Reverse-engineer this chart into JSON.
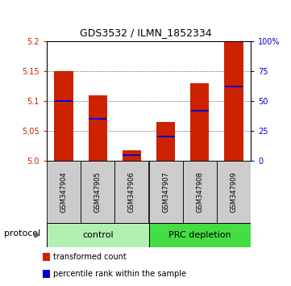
{
  "title": "GDS3532 / ILMN_1852334",
  "samples": [
    "GSM347904",
    "GSM347905",
    "GSM347906",
    "GSM347907",
    "GSM347908",
    "GSM347909"
  ],
  "red_values": [
    5.15,
    5.11,
    5.017,
    5.065,
    5.13,
    5.2
  ],
  "blue_values": [
    5.1,
    5.07,
    5.01,
    5.04,
    5.084,
    5.124
  ],
  "ymin": 5.0,
  "ymax": 5.2,
  "left_ticks": [
    5.0,
    5.05,
    5.1,
    5.15,
    5.2
  ],
  "right_ticks": [
    0,
    25,
    50,
    75,
    100
  ],
  "right_tick_labels": [
    "0",
    "25",
    "50",
    "75",
    "100%"
  ],
  "groups": [
    {
      "label": "control",
      "indices": [
        0,
        1,
        2
      ],
      "color": "#b2f0b2"
    },
    {
      "label": "PRC depletion",
      "indices": [
        3,
        4,
        5
      ],
      "color": "#44dd44"
    }
  ],
  "bar_color": "#cc2200",
  "blue_color": "#0000cc",
  "protocol_label": "protocol",
  "legend_red": "transformed count",
  "legend_blue": "percentile rank within the sample",
  "bar_width": 0.55,
  "label_area_color": "#cccccc",
  "title_fontsize": 9,
  "tick_fontsize": 7,
  "sample_fontsize": 6,
  "group_fontsize": 8,
  "legend_fontsize": 7
}
